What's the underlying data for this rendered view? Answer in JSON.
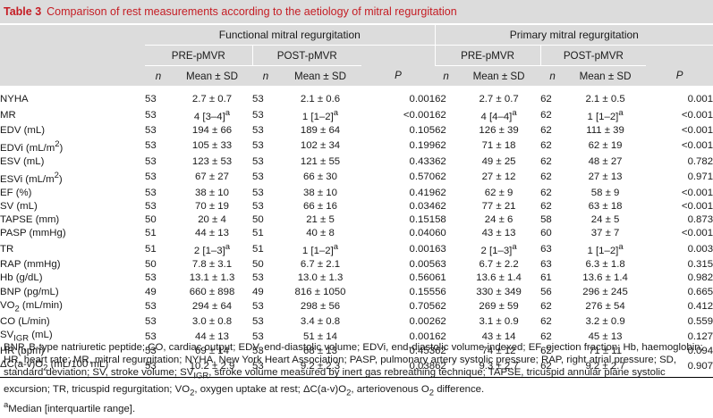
{
  "title": {
    "label": "Table 3",
    "text": "Comparison of rest measurements according to the aetiology of mitral regurgitation"
  },
  "groups": [
    "Functional mitral regurgitation",
    "Primary mitral regurgitation"
  ],
  "timepoints": [
    "PRE-pMVR",
    "POST-pMVR"
  ],
  "colheads": {
    "n": "n",
    "mean": "Mean ± SD",
    "p": "P"
  },
  "rows": [
    {
      "param": "NYHA",
      "f_pre_n": "53",
      "f_pre_v": "2.7 ± 0.7",
      "f_post_n": "53",
      "f_post_v": "2.1 ± 0.6",
      "f_p": "0.001",
      "p_pre_n": "62",
      "p_pre_v": "2.7 ± 0.7",
      "p_post_n": "62",
      "p_post_v": "2.1 ± 0.5",
      "p_p": "0.001"
    },
    {
      "param": "MR",
      "f_pre_n": "53",
      "f_pre_v": "4 [3–4]",
      "f_pre_sup": "a",
      "f_post_n": "53",
      "f_post_v": "1 [1–2]",
      "f_post_sup": "a",
      "f_p": "<0.001",
      "p_pre_n": "62",
      "p_pre_v": "4 [4–4]",
      "p_pre_sup": "a",
      "p_post_n": "62",
      "p_post_v": "1 [1–2]",
      "p_post_sup": "a",
      "p_p": "<0.001"
    },
    {
      "param": "EDV (mL)",
      "f_pre_n": "53",
      "f_pre_v": "194 ± 66",
      "f_post_n": "53",
      "f_post_v": "189 ± 64",
      "f_p": "0.105",
      "p_pre_n": "62",
      "p_pre_v": "126 ± 39",
      "p_post_n": "62",
      "p_post_v": "111 ± 39",
      "p_p": "<0.001"
    },
    {
      "param": "EDVi (mL/m",
      "param_sup": "2",
      "param_end": ")",
      "f_pre_n": "53",
      "f_pre_v": "105 ± 33",
      "f_post_n": "53",
      "f_post_v": "102 ± 34",
      "f_p": "0.199",
      "p_pre_n": "62",
      "p_pre_v": "71 ± 18",
      "p_post_n": "62",
      "p_post_v": "62 ± 19",
      "p_p": "<0.001"
    },
    {
      "param": "ESV (mL)",
      "f_pre_n": "53",
      "f_pre_v": "123 ± 53",
      "f_post_n": "53",
      "f_post_v": "121 ± 55",
      "f_p": "0.433",
      "p_pre_n": "62",
      "p_pre_v": "49 ± 25",
      "p_post_n": "62",
      "p_post_v": "48 ± 27",
      "p_p": "0.782"
    },
    {
      "param": "ESVi (mL/m",
      "param_sup": "2",
      "param_end": ")",
      "f_pre_n": "53",
      "f_pre_v": "67 ± 27",
      "f_post_n": "53",
      "f_post_v": "66 ± 30",
      "f_p": "0.570",
      "p_pre_n": "62",
      "p_pre_v": "27 ± 12",
      "p_post_n": "62",
      "p_post_v": "27 ± 13",
      "p_p": "0.971"
    },
    {
      "param": "EF (%)",
      "f_pre_n": "53",
      "f_pre_v": "38 ± 10",
      "f_post_n": "53",
      "f_post_v": "38 ± 10",
      "f_p": "0.419",
      "p_pre_n": "62",
      "p_pre_v": "62 ± 9",
      "p_post_n": "62",
      "p_post_v": "58 ± 9",
      "p_p": "<0.001"
    },
    {
      "param": "SV (mL)",
      "f_pre_n": "53",
      "f_pre_v": "70 ± 19",
      "f_post_n": "53",
      "f_post_v": "66 ± 16",
      "f_p": "0.034",
      "p_pre_n": "62",
      "p_pre_v": "77 ± 21",
      "p_post_n": "62",
      "p_post_v": "63 ± 18",
      "p_p": "<0.001"
    },
    {
      "param": "TAPSE (mm)",
      "f_pre_n": "50",
      "f_pre_v": "20 ± 4",
      "f_post_n": "50",
      "f_post_v": "21 ± 5",
      "f_p": "0.151",
      "p_pre_n": "58",
      "p_pre_v": "24 ± 6",
      "p_post_n": "58",
      "p_post_v": "24 ± 5",
      "p_p": "0.873"
    },
    {
      "param": "PASP (mmHg)",
      "f_pre_n": "51",
      "f_pre_v": "44 ± 13",
      "f_post_n": "51",
      "f_post_v": "40 ± 8",
      "f_p": "0.040",
      "p_pre_n": "60",
      "p_pre_v": "43 ± 13",
      "p_post_n": "60",
      "p_post_v": "37 ± 7",
      "p_p": "<0.001"
    },
    {
      "param": "TR",
      "f_pre_n": "51",
      "f_pre_v": "2 [1–3]",
      "f_pre_sup": "a",
      "f_post_n": "51",
      "f_post_v": "1 [1–2]",
      "f_post_sup": "a",
      "f_p": "0.001",
      "p_pre_n": "63",
      "p_pre_v": "2 [1–3]",
      "p_pre_sup": "a",
      "p_post_n": "63",
      "p_post_v": "1 [1–2]",
      "p_post_sup": "a",
      "p_p": "0.003"
    },
    {
      "param": "RAP (mmHg)",
      "f_pre_n": "50",
      "f_pre_v": "7.8 ± 3.1",
      "f_post_n": "50",
      "f_post_v": "6.7 ± 2.1",
      "f_p": "0.005",
      "p_pre_n": "63",
      "p_pre_v": "6.7 ± 2.2",
      "p_post_n": "63",
      "p_post_v": "6.3 ± 1.8",
      "p_p": "0.315"
    },
    {
      "param": "Hb (g/dL)",
      "f_pre_n": "53",
      "f_pre_v": "13.1 ± 1.3",
      "f_post_n": "53",
      "f_post_v": "13.0 ± 1.3",
      "f_p": "0.560",
      "p_pre_n": "61",
      "p_pre_v": "13.6 ± 1.4",
      "p_post_n": "61",
      "p_post_v": "13.6 ± 1.4",
      "p_p": "0.982"
    },
    {
      "param": "BNP (pg/mL)",
      "f_pre_n": "49",
      "f_pre_v": "660 ± 898",
      "f_post_n": "49",
      "f_post_v": "816 ± 1050",
      "f_p": "0.155",
      "p_pre_n": "56",
      "p_pre_v": "330 ± 349",
      "p_post_n": "56",
      "p_post_v": "296 ± 245",
      "p_p": "0.665"
    },
    {
      "param": "VO",
      "param_sub": "2",
      "param_end": " (mL/min)",
      "f_pre_n": "53",
      "f_pre_v": "294 ± 64",
      "f_post_n": "53",
      "f_post_v": "298 ± 56",
      "f_p": "0.705",
      "p_pre_n": "62",
      "p_pre_v": "269 ± 59",
      "p_post_n": "62",
      "p_post_v": "276 ± 54",
      "p_p": "0.412"
    },
    {
      "param": "CO (L/min)",
      "f_pre_n": "53",
      "f_pre_v": "3.0 ± 0.8",
      "f_post_n": "53",
      "f_post_v": "3.4 ± 0.8",
      "f_p": "0.002",
      "p_pre_n": "62",
      "p_pre_v": "3.1 ± 0.9",
      "p_post_n": "62",
      "p_post_v": "3.2 ± 0.9",
      "p_p": "0.559"
    },
    {
      "param": "SV",
      "param_sub": "IGR",
      "param_end": " (mL)",
      "f_pre_n": "53",
      "f_pre_v": "44 ± 13",
      "f_post_n": "53",
      "f_post_v": "51 ± 14",
      "f_p": "0.001",
      "p_pre_n": "62",
      "p_pre_v": "43 ± 14",
      "p_post_n": "62",
      "p_post_v": "45 ± 13",
      "p_p": "0.127"
    },
    {
      "param": "HR (bpm)",
      "f_pre_n": "53",
      "f_pre_v": "69 ± 14",
      "f_post_n": "53",
      "f_post_v": "68 ± 13",
      "f_p": "0.453",
      "p_pre_n": "62",
      "p_pre_v": "74 ± 12",
      "p_post_n": "62",
      "p_post_v": "71 ± 11",
      "p_p": "0.094"
    },
    {
      "param": "ΔC(a-v)O",
      "param_sub": "2",
      "param_end": " (mL/100 mL)",
      "f_pre_n": "53",
      "f_pre_v": "10.2 ± 2.9",
      "f_post_n": "53",
      "f_post_v": "9.2 ± 2.3",
      "f_p": "0.038",
      "p_pre_n": "62",
      "p_pre_v": "9.3 ± 2.7",
      "p_post_n": "62",
      "p_post_v": "9.2 ± 2.7",
      "p_p": "0.907"
    }
  ],
  "footnote": {
    "abbrev_1": "BNP, B-type natriuretic peptide; CO, cardiac output; EDV, end-diastolic volume; EDVi, end-diastolic volume indexed; EF, ejection fraction; Hb, haemoglobin; HR, heart rate; MR, mitral regurgitation; NYHA, New York Heart Association; PASP, pulmonary artery systolic pressure; RAP, right atrial pressure; SD, standard deviation; SV, stroke volume; SV",
    "abbrev_sub1": "IGR",
    "abbrev_2": ", stroke volume measured by inert gas rebreathing technique; TAPSE, tricuspid annular plane systolic excursion; TR, tricuspid regurgitation; VO",
    "abbrev_sub2": "2",
    "abbrev_3": ", oxygen uptake at rest; ΔC(a-v)O",
    "abbrev_sub3": "2",
    "abbrev_4": ", arteriovenous O",
    "abbrev_sub4": "2",
    "abbrev_5": " difference.",
    "median_sup": "a",
    "median_text": "Median [interquartile range]."
  }
}
